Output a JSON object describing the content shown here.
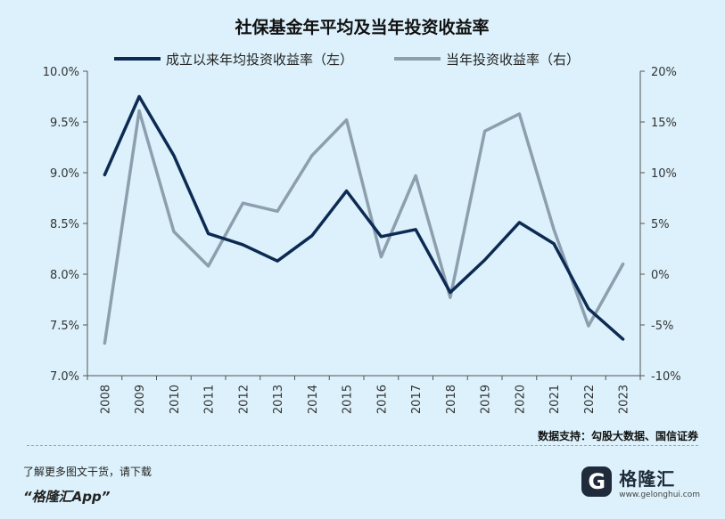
{
  "chart_data": {
    "type": "line",
    "title": "社保基金年平均及当年投资收益率",
    "categories": [
      "2008",
      "2009",
      "2010",
      "2011",
      "2012",
      "2013",
      "2014",
      "2015",
      "2016",
      "2017",
      "2018",
      "2019",
      "2020",
      "2021",
      "2022",
      "2023"
    ],
    "series": [
      {
        "name": "成立以来年均投资收益率（左）",
        "axis": "left",
        "color": "#0d2a52",
        "values": [
          8.98,
          9.75,
          9.17,
          8.4,
          8.29,
          8.13,
          8.38,
          8.82,
          8.37,
          8.44,
          7.82,
          8.14,
          8.51,
          8.3,
          7.66,
          7.36
        ]
      },
      {
        "name": "当年投资收益率（右）",
        "axis": "right",
        "color": "#8d9fae",
        "values": [
          -6.8,
          16.1,
          4.2,
          0.8,
          7.0,
          6.2,
          11.7,
          15.2,
          1.7,
          9.7,
          -2.3,
          14.1,
          15.8,
          4.4,
          -5.1,
          1.0
        ]
      }
    ],
    "yleft": {
      "ylim": [
        7.0,
        10.0
      ],
      "ticks": [
        10.0,
        9.5,
        9.0,
        8.5,
        8.0,
        7.5,
        7.0
      ],
      "tick_labels": [
        "10.0%",
        "9.5%",
        "9.0%",
        "8.5%",
        "8.0%",
        "7.5%",
        "7.0%"
      ]
    },
    "yright": {
      "ylim": [
        -10,
        20
      ],
      "ticks": [
        20,
        15,
        10,
        5,
        0,
        -5,
        -10
      ],
      "tick_labels": [
        "20%",
        "15%",
        "10%",
        "5%",
        "0%",
        "-5%",
        "-10%"
      ]
    },
    "grid": false,
    "legend_position": "top"
  },
  "source_text": "数据支持：勾股大数据、国信证券",
  "promo": {
    "line1": "了解更多图文干货，请下载",
    "line2": "“格隆汇App”"
  },
  "brand": {
    "mark": "G",
    "name": "格隆汇",
    "url": "www.gelonghui.com"
  }
}
